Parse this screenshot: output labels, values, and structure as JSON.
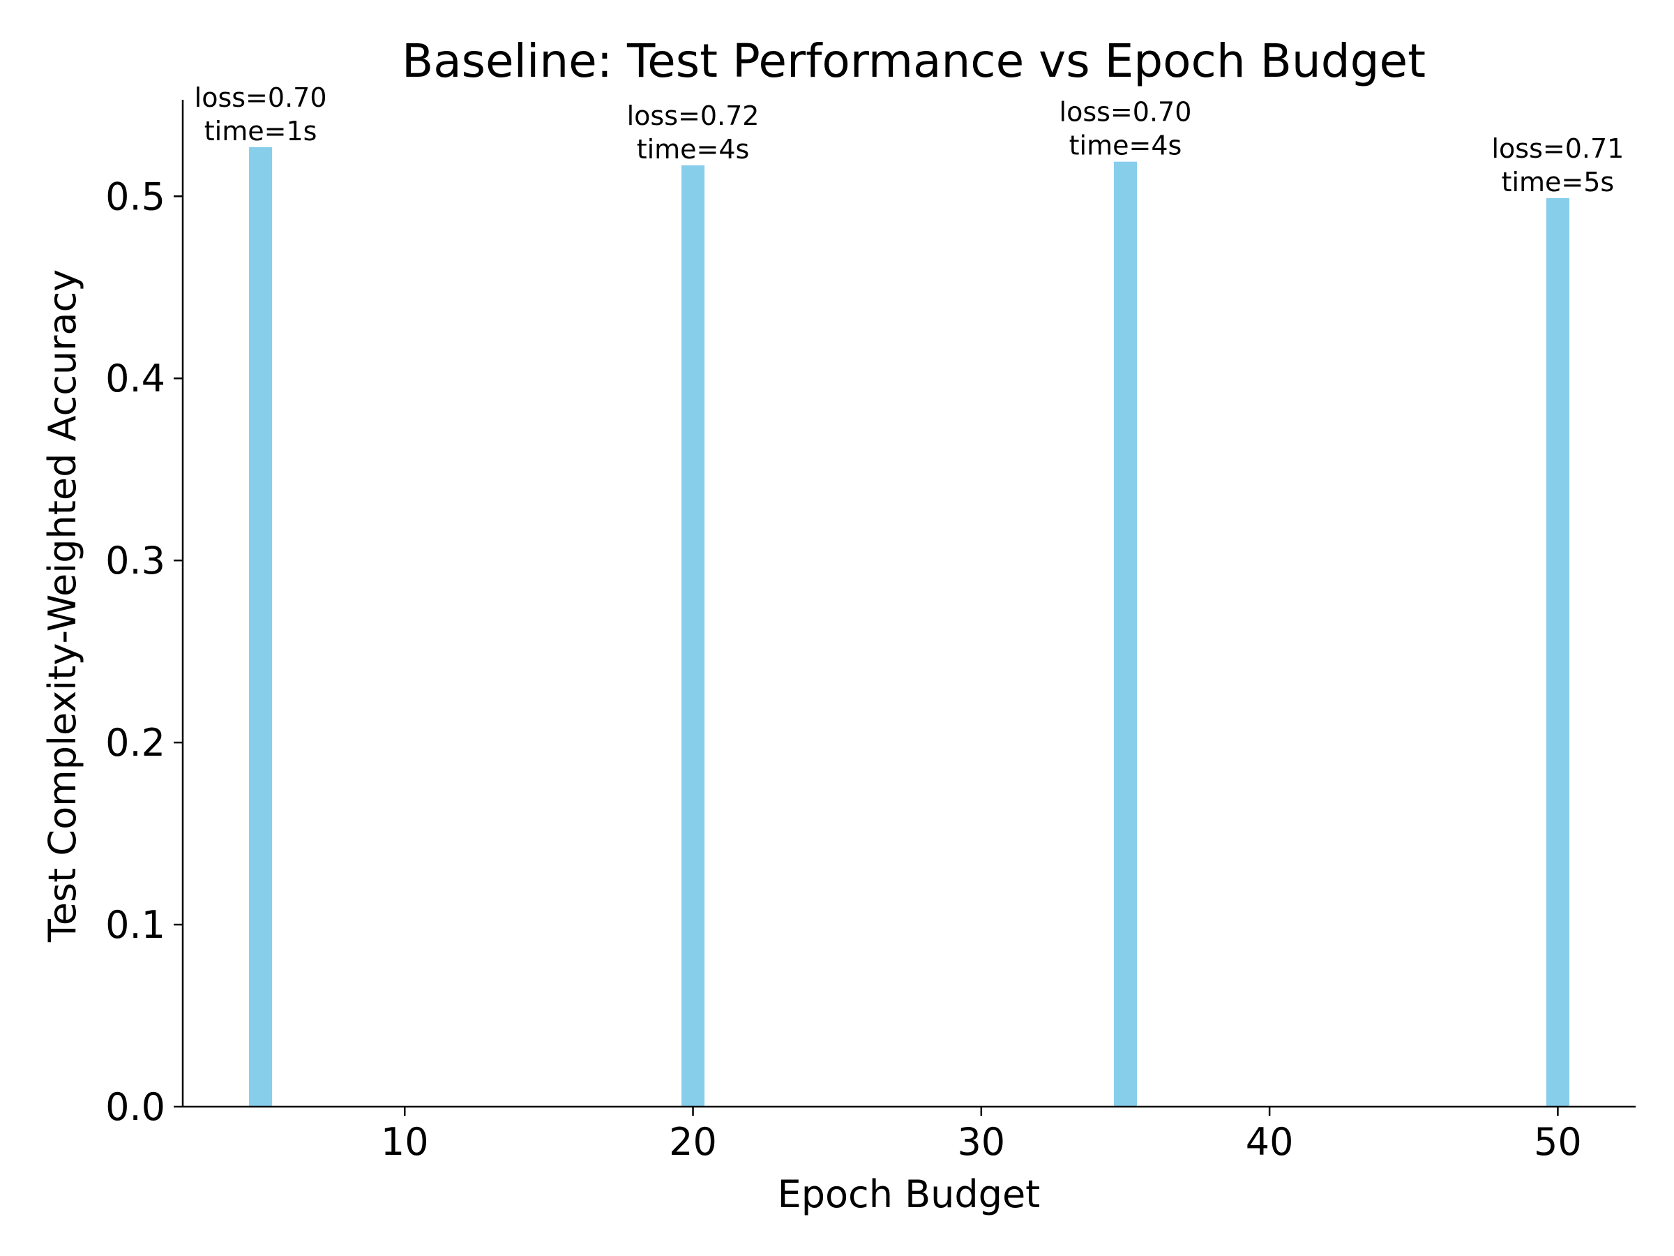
{
  "chart_data": {
    "type": "bar",
    "title": "Baseline: Test Performance vs Epoch Budget",
    "xlabel": "Epoch Budget",
    "ylabel": "Test Complexity-Weighted Accuracy",
    "x": [
      5,
      20,
      35,
      50
    ],
    "values": [
      0.527,
      0.517,
      0.519,
      0.499
    ],
    "annotations": [
      {
        "line1": "loss=0.70",
        "line2": "time=1s"
      },
      {
        "line1": "loss=0.72",
        "line2": "time=4s"
      },
      {
        "line1": "loss=0.70",
        "line2": "time=4s"
      },
      {
        "line1": "loss=0.71",
        "line2": "time=5s"
      }
    ],
    "xlim": [
      2.3,
      52.7
    ],
    "ylim": [
      0,
      0.553
    ],
    "xticks": [
      10,
      20,
      30,
      40,
      50
    ],
    "xtick_labels": [
      "10",
      "20",
      "30",
      "40",
      "50"
    ],
    "yticks": [
      0.0,
      0.1,
      0.2,
      0.3,
      0.4,
      0.5
    ],
    "ytick_labels": [
      "0.0",
      "0.1",
      "0.2",
      "0.3",
      "0.4",
      "0.5"
    ],
    "bar_width": 0.8,
    "bar_color": "#87ceeb",
    "grid": false,
    "legend": "none"
  }
}
